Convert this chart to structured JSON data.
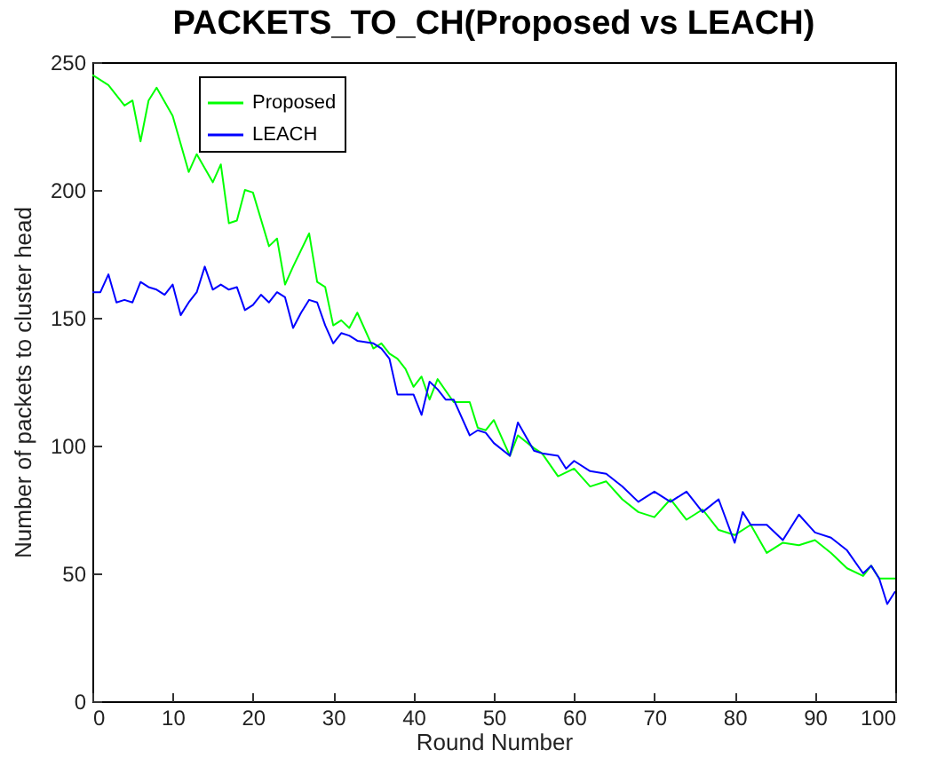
{
  "chart_data": {
    "type": "line",
    "title": "PACKETS_TO_CH(Proposed  vs LEACH)",
    "xlabel": "Round Number",
    "ylabel": "Number of packets to cluster head",
    "xlim": [
      0,
      100
    ],
    "xticks": [
      0,
      10,
      20,
      30,
      40,
      50,
      60,
      70,
      80,
      90,
      100
    ],
    "ylim": [
      0,
      250
    ],
    "yticks": [
      0,
      50,
      100,
      150,
      200,
      250
    ],
    "grid": false,
    "legend": "top left",
    "line_style": "solid",
    "marker": "none",
    "series": [
      {
        "name": "Proposed",
        "color": "#00ff00",
        "x": [
          0,
          2,
          4,
          5,
          6,
          7,
          8,
          10,
          12,
          13,
          15,
          16,
          17,
          18,
          19,
          20,
          22,
          23,
          24,
          25,
          27,
          28,
          29,
          30,
          31,
          32,
          33,
          35,
          36,
          37,
          38,
          39,
          40,
          41,
          42,
          43,
          45,
          47,
          48,
          49,
          50,
          52,
          53,
          55,
          56,
          58,
          60,
          62,
          64,
          66,
          68,
          70,
          72,
          74,
          76,
          78,
          80,
          82,
          84,
          86,
          88,
          90,
          92,
          94,
          96,
          97,
          98,
          100
        ],
        "values": [
          245,
          241,
          233,
          235,
          219,
          235,
          240,
          229,
          207,
          214,
          203,
          210,
          187,
          188,
          200,
          199,
          178,
          181,
          163,
          170,
          183,
          164,
          162,
          147,
          149,
          146,
          152,
          138,
          140,
          136,
          134,
          130,
          123,
          127,
          118,
          126,
          117,
          117,
          107,
          106,
          110,
          96,
          104,
          99,
          97,
          88,
          91,
          84,
          86,
          79,
          74,
          72,
          79,
          71,
          75,
          67,
          65,
          69,
          58,
          62,
          61,
          63,
          58,
          52,
          49,
          53,
          48,
          48
        ]
      },
      {
        "name": "LEACH",
        "color": "#0000ff",
        "x": [
          0,
          1,
          2,
          3,
          4,
          5,
          6,
          7,
          8,
          9,
          10,
          11,
          12,
          13,
          14,
          15,
          16,
          17,
          18,
          19,
          20,
          21,
          22,
          23,
          24,
          25,
          26,
          27,
          28,
          29,
          30,
          31,
          32,
          33,
          35,
          36,
          37,
          38,
          39,
          40,
          41,
          42,
          43,
          44,
          45,
          47,
          48,
          49,
          50,
          52,
          53,
          55,
          56,
          58,
          59,
          60,
          62,
          64,
          66,
          68,
          70,
          72,
          74,
          76,
          78,
          80,
          81,
          82,
          84,
          86,
          88,
          90,
          92,
          94,
          96,
          97,
          98,
          99,
          100
        ],
        "values": [
          160,
          160,
          167,
          156,
          157,
          156,
          164,
          162,
          161,
          159,
          163,
          151,
          156,
          160,
          170,
          161,
          163,
          161,
          162,
          153,
          155,
          159,
          156,
          160,
          158,
          146,
          152,
          157,
          156,
          147,
          140,
          144,
          143,
          141,
          140,
          138,
          134,
          120,
          120,
          120,
          112,
          125,
          122,
          118,
          118,
          104,
          106,
          105,
          101,
          96,
          109,
          98,
          97,
          96,
          91,
          94,
          90,
          89,
          84,
          78,
          82,
          78,
          82,
          74,
          79,
          62,
          74,
          69,
          69,
          63,
          73,
          66,
          64,
          59,
          50,
          53,
          48,
          38,
          43
        ]
      }
    ]
  }
}
